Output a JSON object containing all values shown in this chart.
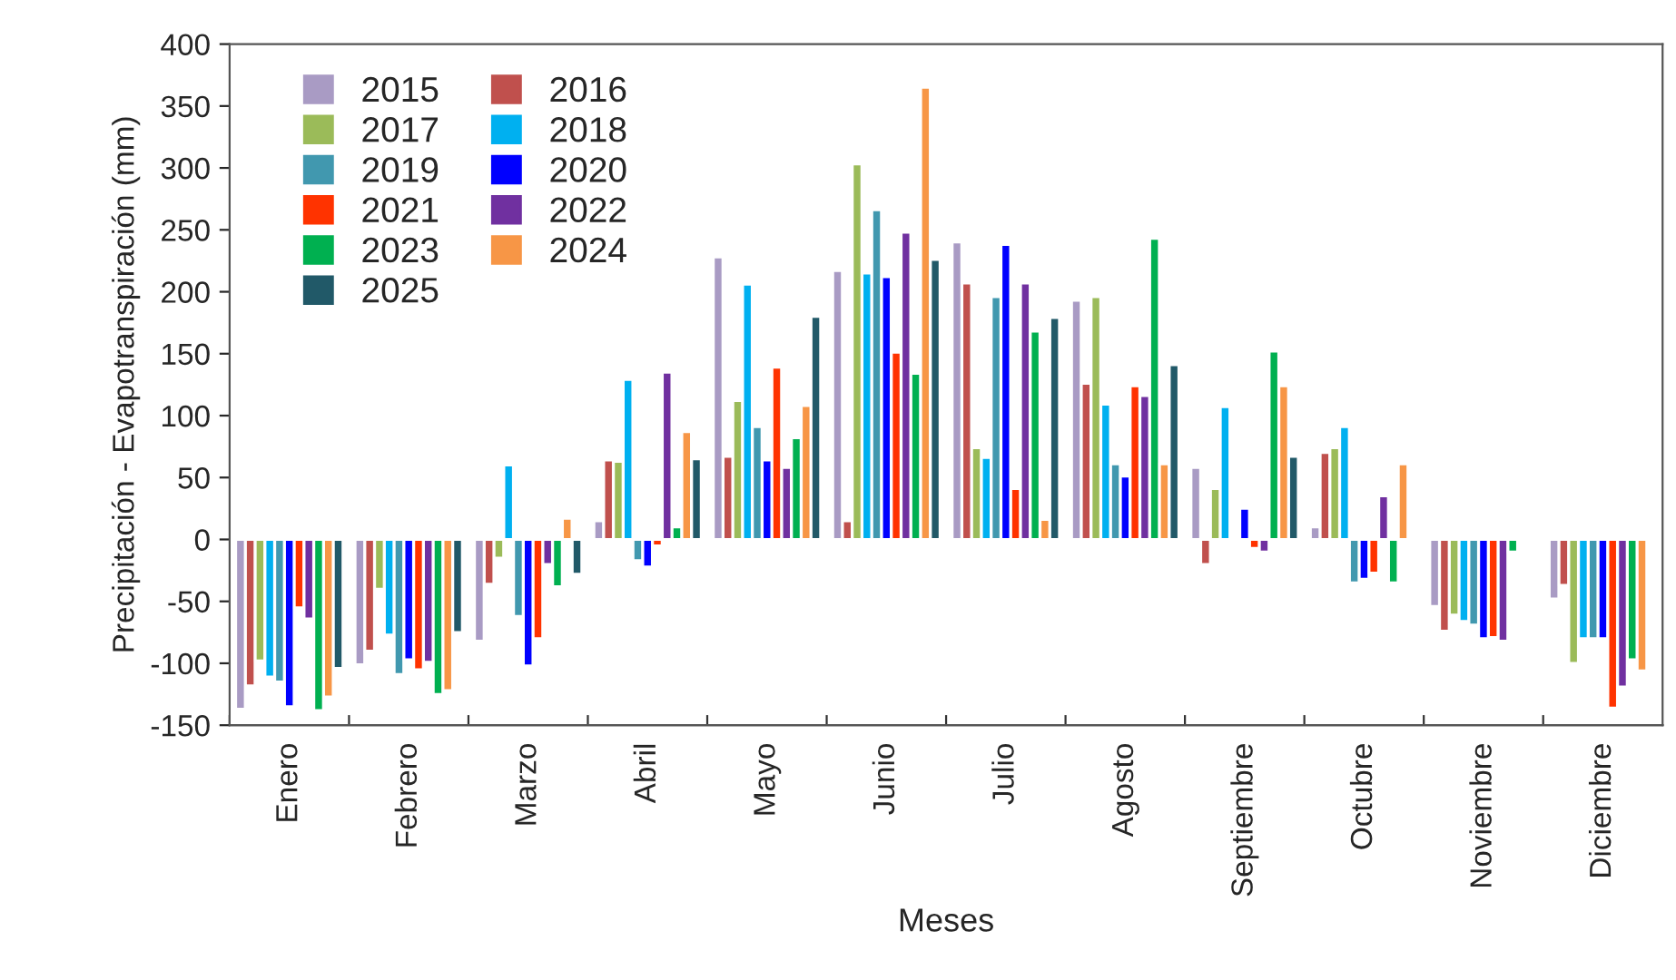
{
  "chart_data": {
    "type": "bar",
    "xlabel": "Meses",
    "ylabel": "Precipitación - Evapotranspiración (mm)",
    "categories": [
      "Enero",
      "Febrero",
      "Marzo",
      "Abril",
      "Mayo",
      "Junio",
      "Julio",
      "Agosto",
      "Septiembre",
      "Octubre",
      "Noviembre",
      "Diciembre"
    ],
    "ylim": [
      -150,
      400
    ],
    "yticks": [
      -150,
      -100,
      -50,
      0,
      50,
      100,
      150,
      200,
      250,
      300,
      350,
      400
    ],
    "grid": false,
    "legend": "top left",
    "series": [
      {
        "name": "2015",
        "color": "#a99bc4",
        "values": [
          -137,
          -101,
          -82,
          15,
          228,
          217,
          240,
          193,
          58,
          10,
          -54,
          -48
        ]
      },
      {
        "name": "2016",
        "color": "#c0504d",
        "values": [
          -118,
          -90,
          -36,
          64,
          67,
          15,
          207,
          126,
          -20,
          70,
          -74,
          -37
        ]
      },
      {
        "name": "2017",
        "color": "#9bbb59",
        "values": [
          -98,
          -40,
          -15,
          63,
          112,
          303,
          74,
          196,
          41,
          74,
          -61,
          -100
        ]
      },
      {
        "name": "2018",
        "color": "#00b0f0",
        "values": [
          -111,
          -77,
          60,
          129,
          206,
          215,
          66,
          109,
          107,
          91,
          -66,
          -80
        ]
      },
      {
        "name": "2019",
        "color": "#4198af",
        "values": [
          -115,
          -109,
          -62,
          -17,
          91,
          266,
          196,
          61,
          null,
          -35,
          -69,
          -80
        ]
      },
      {
        "name": "2020",
        "color": "#0000ff",
        "values": [
          -135,
          -97,
          -102,
          -22,
          64,
          212,
          238,
          51,
          25,
          -32,
          -80,
          -80
        ]
      },
      {
        "name": "2021",
        "color": "#ff3300",
        "values": [
          -55,
          -105,
          -80,
          -5,
          139,
          151,
          41,
          124,
          -7,
          -27,
          -79,
          -136
        ]
      },
      {
        "name": "2022",
        "color": "#7030a0",
        "values": [
          -64,
          -99,
          -20,
          135,
          58,
          248,
          207,
          116,
          -10,
          35,
          -82,
          -119
        ]
      },
      {
        "name": "2023",
        "color": "#00b050",
        "values": [
          -138,
          -125,
          -38,
          10,
          82,
          134,
          168,
          243,
          152,
          -35,
          -10,
          -97
        ]
      },
      {
        "name": "2024",
        "color": "#f79646",
        "values": [
          -127,
          -122,
          17,
          87,
          108,
          365,
          16,
          61,
          124,
          61,
          null,
          -106
        ]
      },
      {
        "name": "2025",
        "color": "#215968",
        "values": [
          -104,
          -75,
          -28,
          65,
          180,
          226,
          179,
          141,
          67,
          null,
          null,
          null
        ]
      }
    ]
  }
}
